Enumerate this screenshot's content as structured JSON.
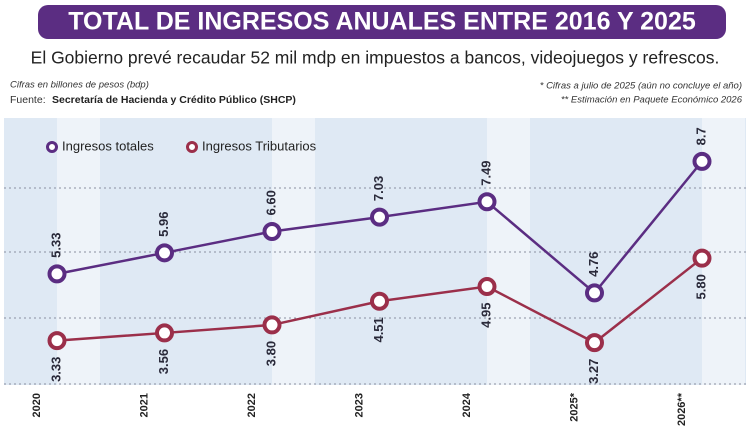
{
  "chart_data": {
    "type": "line",
    "title": "TOTAL DE INGRESOS ANUALES ENTRE 2016 Y 2025",
    "subtitle": "El Gobierno prevé recaudar 52 mil mdp en impuestos a bancos, videojuegos y refrescos.",
    "units_note": "Cifras en billones de pesos (bdp)",
    "source_label": "Fuente:",
    "source": "Secretaría de Hacienda y Crédito Público (SHCP)",
    "notes": [
      "* Cifras a julio de 2025 (aún no concluye el año)",
      "** Estimación en Paquete Económico 2026"
    ],
    "categories": [
      "2020",
      "2021",
      "2022",
      "2023",
      "2024",
      "2025*",
      "2026**"
    ],
    "series": [
      {
        "name": "Ingresos totales",
        "color": "#5b2d82",
        "values": [
          5.33,
          5.96,
          6.6,
          7.03,
          7.49,
          4.76,
          8.7
        ],
        "value_labels": [
          "5.33",
          "5.96",
          "6.60",
          "7.03",
          "7.49",
          "4.76",
          "8.7"
        ]
      },
      {
        "name": "Ingresos Tributarios",
        "color": "#9b2f4a",
        "values": [
          3.33,
          3.56,
          3.8,
          4.51,
          4.95,
          3.27,
          5.8
        ],
        "value_labels": [
          "3.33",
          "3.56",
          "3.80",
          "4.51",
          "4.95",
          "3.27",
          "5.80"
        ]
      }
    ],
    "ylim": [
      2,
      10
    ]
  }
}
